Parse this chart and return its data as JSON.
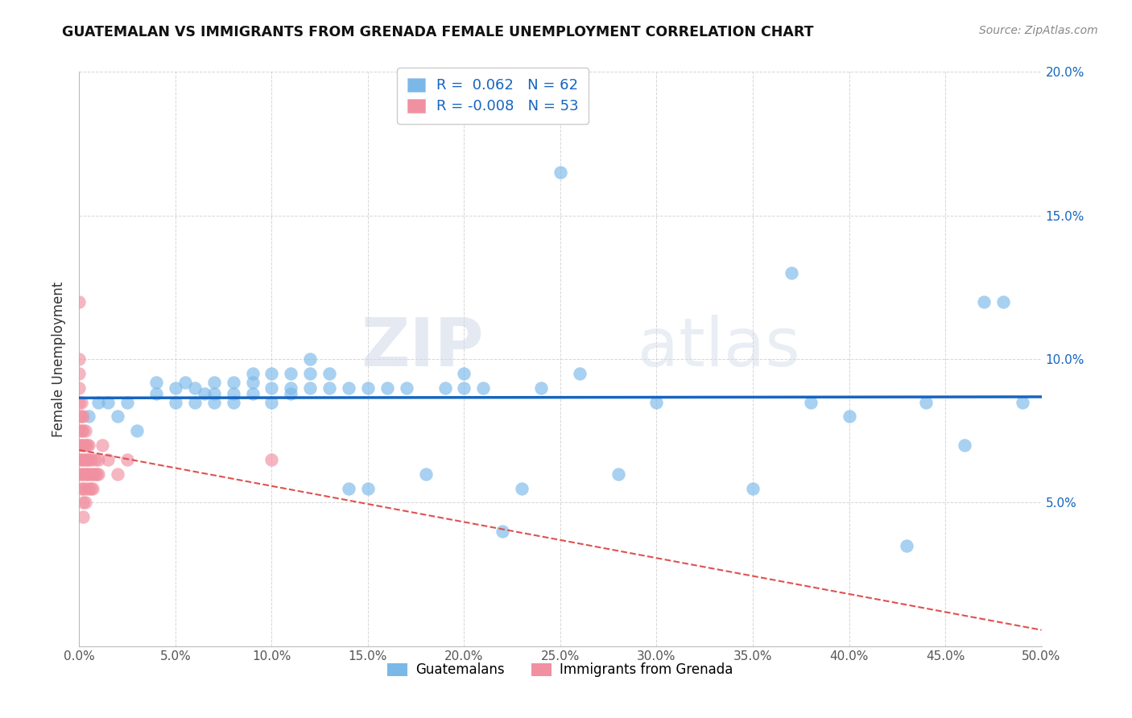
{
  "title": "GUATEMALAN VS IMMIGRANTS FROM GRENADA FEMALE UNEMPLOYMENT CORRELATION CHART",
  "source": "Source: ZipAtlas.com",
  "ylabel_label": "Female Unemployment",
  "legend_label1": "Guatemalans",
  "legend_label2": "Immigrants from Grenada",
  "r1": 0.062,
  "n1": 62,
  "r2": -0.008,
  "n2": 53,
  "color1": "#7ab8e8",
  "color2": "#f090a0",
  "trendline1_color": "#1565c0",
  "trendline2_color": "#e05050",
  "watermark_zip": "ZIP",
  "watermark_atlas": "atlas",
  "xlim": [
    0.0,
    0.5
  ],
  "ylim": [
    0.0,
    0.2
  ],
  "xticks": [
    0.0,
    0.05,
    0.1,
    0.15,
    0.2,
    0.25,
    0.3,
    0.35,
    0.4,
    0.45,
    0.5
  ],
  "yticks": [
    0.05,
    0.1,
    0.15,
    0.2
  ],
  "guatemalan_x": [
    0.005,
    0.01,
    0.015,
    0.02,
    0.025,
    0.03,
    0.04,
    0.04,
    0.05,
    0.05,
    0.055,
    0.06,
    0.06,
    0.065,
    0.07,
    0.07,
    0.07,
    0.08,
    0.08,
    0.08,
    0.09,
    0.09,
    0.09,
    0.1,
    0.1,
    0.1,
    0.11,
    0.11,
    0.11,
    0.12,
    0.12,
    0.12,
    0.13,
    0.13,
    0.14,
    0.14,
    0.15,
    0.15,
    0.16,
    0.17,
    0.18,
    0.19,
    0.2,
    0.2,
    0.21,
    0.22,
    0.23,
    0.24,
    0.25,
    0.26,
    0.28,
    0.3,
    0.35,
    0.37,
    0.38,
    0.4,
    0.43,
    0.44,
    0.46,
    0.47,
    0.48,
    0.49
  ],
  "guatemalan_y": [
    0.08,
    0.085,
    0.085,
    0.08,
    0.085,
    0.075,
    0.088,
    0.092,
    0.085,
    0.09,
    0.092,
    0.085,
    0.09,
    0.088,
    0.085,
    0.088,
    0.092,
    0.085,
    0.088,
    0.092,
    0.088,
    0.092,
    0.095,
    0.085,
    0.09,
    0.095,
    0.088,
    0.09,
    0.095,
    0.09,
    0.095,
    0.1,
    0.09,
    0.095,
    0.055,
    0.09,
    0.055,
    0.09,
    0.09,
    0.09,
    0.06,
    0.09,
    0.09,
    0.095,
    0.09,
    0.04,
    0.055,
    0.09,
    0.165,
    0.095,
    0.06,
    0.085,
    0.055,
    0.13,
    0.085,
    0.08,
    0.035,
    0.085,
    0.07,
    0.12,
    0.12,
    0.085
  ],
  "grenada_x": [
    0.0,
    0.0,
    0.0,
    0.0,
    0.0,
    0.0,
    0.0,
    0.0,
    0.0,
    0.0,
    0.001,
    0.001,
    0.001,
    0.001,
    0.001,
    0.001,
    0.001,
    0.002,
    0.002,
    0.002,
    0.002,
    0.002,
    0.002,
    0.002,
    0.002,
    0.003,
    0.003,
    0.003,
    0.003,
    0.003,
    0.003,
    0.004,
    0.004,
    0.004,
    0.005,
    0.005,
    0.005,
    0.005,
    0.006,
    0.006,
    0.006,
    0.007,
    0.007,
    0.008,
    0.008,
    0.009,
    0.01,
    0.01,
    0.012,
    0.015,
    0.02,
    0.025,
    0.1
  ],
  "grenada_y": [
    0.12,
    0.1,
    0.095,
    0.09,
    0.085,
    0.08,
    0.075,
    0.07,
    0.065,
    0.06,
    0.085,
    0.08,
    0.075,
    0.07,
    0.065,
    0.06,
    0.055,
    0.08,
    0.075,
    0.07,
    0.065,
    0.06,
    0.055,
    0.05,
    0.045,
    0.075,
    0.07,
    0.065,
    0.06,
    0.055,
    0.05,
    0.07,
    0.065,
    0.06,
    0.07,
    0.065,
    0.06,
    0.055,
    0.065,
    0.06,
    0.055,
    0.06,
    0.055,
    0.065,
    0.06,
    0.06,
    0.065,
    0.06,
    0.07,
    0.065,
    0.06,
    0.065,
    0.065
  ]
}
